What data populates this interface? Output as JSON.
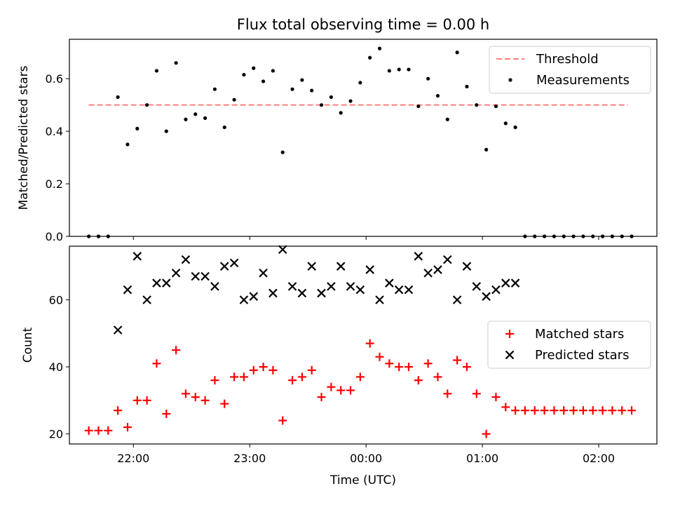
{
  "chart_data": [
    {
      "type": "scatter",
      "title": "Flux total observing time = 0.00 h",
      "ylabel": "Matched/Predicted stars",
      "ylim": [
        0,
        0.75
      ],
      "yticks": [
        0.0,
        0.2,
        0.4,
        0.6
      ],
      "ytick_labels": [
        "0.0",
        "0.2",
        "0.4",
        "0.6"
      ],
      "legend_position": "top-right",
      "threshold": {
        "name": "Threshold",
        "value": 0.5,
        "x_range": [
          "21:37",
          "02:15"
        ],
        "color": "#ff7f7f"
      },
      "series": [
        {
          "name": "Measurements",
          "color": "#000000",
          "x": [
            "21:37",
            "21:42",
            "21:47",
            "21:52",
            "21:57",
            "22:02",
            "22:07",
            "22:12",
            "22:17",
            "22:22",
            "22:27",
            "22:32",
            "22:37",
            "22:42",
            "22:47",
            "22:52",
            "22:57",
            "23:02",
            "23:07",
            "23:12",
            "23:17",
            "23:22",
            "23:27",
            "23:32",
            "23:37",
            "23:42",
            "23:47",
            "23:52",
            "23:57",
            "00:02",
            "00:07",
            "00:12",
            "00:17",
            "00:22",
            "00:27",
            "00:32",
            "00:37",
            "00:42",
            "00:47",
            "00:52",
            "00:57",
            "01:02",
            "01:07",
            "01:12",
            "01:17",
            "01:22",
            "01:27",
            "01:32",
            "01:37",
            "01:42",
            "01:47",
            "01:52",
            "01:57",
            "02:02",
            "02:07",
            "02:12",
            "02:17"
          ],
          "y": [
            0,
            0,
            0,
            0.53,
            0.35,
            0.41,
            0.5,
            0.63,
            0.4,
            0.66,
            0.445,
            0.465,
            0.45,
            0.56,
            0.415,
            0.52,
            0.615,
            0.64,
            0.59,
            0.63,
            0.32,
            0.56,
            0.595,
            0.555,
            0.5,
            0.53,
            0.47,
            0.515,
            0.585,
            0.68,
            0.715,
            0.63,
            0.635,
            0.635,
            0.495,
            0.6,
            0.535,
            0.445,
            0.7,
            0.57,
            0.5,
            0.33,
            0.495,
            0.43,
            0.415,
            0,
            0,
            0,
            0,
            0,
            0,
            0,
            0,
            0,
            0,
            0,
            0
          ]
        }
      ]
    },
    {
      "type": "scatter",
      "xlabel": "Time (UTC)",
      "ylabel": "Count",
      "ylim": [
        17,
        76
      ],
      "yticks": [
        20,
        40,
        60
      ],
      "ytick_labels": [
        "20",
        "40",
        "60"
      ],
      "xticks": [
        "22:00",
        "23:00",
        "00:00",
        "01:00",
        "02:00"
      ],
      "legend_position": "center-right",
      "series": [
        {
          "name": "Matched stars",
          "marker": "plus",
          "color": "#ff0000",
          "x": [
            "21:37",
            "21:42",
            "21:47",
            "21:52",
            "21:57",
            "22:02",
            "22:07",
            "22:12",
            "22:17",
            "22:22",
            "22:27",
            "22:32",
            "22:37",
            "22:42",
            "22:47",
            "22:52",
            "22:57",
            "23:02",
            "23:07",
            "23:12",
            "23:17",
            "23:22",
            "23:27",
            "23:32",
            "23:37",
            "23:42",
            "23:47",
            "23:52",
            "23:57",
            "00:02",
            "00:07",
            "00:12",
            "00:17",
            "00:22",
            "00:27",
            "00:32",
            "00:37",
            "00:42",
            "00:47",
            "00:52",
            "00:57",
            "01:02",
            "01:07",
            "01:12",
            "01:17",
            "01:22",
            "01:27",
            "01:32",
            "01:37",
            "01:42",
            "01:47",
            "01:52",
            "01:57",
            "02:02",
            "02:07",
            "02:12",
            "02:17"
          ],
          "y": [
            21,
            21,
            21,
            27,
            22,
            30,
            30,
            41,
            26,
            45,
            32,
            31,
            30,
            36,
            29,
            37,
            37,
            39,
            40,
            39,
            24,
            36,
            37,
            39,
            31,
            34,
            33,
            33,
            37,
            47,
            43,
            41,
            40,
            40,
            36,
            41,
            37,
            32,
            42,
            40,
            32,
            20,
            31,
            28,
            27,
            27,
            27,
            27,
            27,
            27,
            27,
            27,
            27,
            27,
            27,
            27,
            27
          ]
        },
        {
          "name": "Predicted stars",
          "marker": "x",
          "color": "#000000",
          "x": [
            "21:52",
            "21:57",
            "22:02",
            "22:07",
            "22:12",
            "22:17",
            "22:22",
            "22:27",
            "22:32",
            "22:37",
            "22:42",
            "22:47",
            "22:52",
            "22:57",
            "23:02",
            "23:07",
            "23:12",
            "23:17",
            "23:22",
            "23:27",
            "23:32",
            "23:37",
            "23:42",
            "23:47",
            "23:52",
            "23:57",
            "00:02",
            "00:07",
            "00:12",
            "00:17",
            "00:22",
            "00:27",
            "00:32",
            "00:37",
            "00:42",
            "00:47",
            "00:52",
            "00:57",
            "01:02",
            "01:07",
            "01:12",
            "01:17"
          ],
          "y": [
            51,
            63,
            73,
            60,
            65,
            65,
            68,
            72,
            67,
            67,
            64,
            70,
            71,
            60,
            61,
            68,
            62,
            75,
            64,
            62,
            70,
            62,
            64,
            70,
            64,
            63,
            69,
            60,
            65,
            63,
            63,
            73,
            68,
            69,
            72,
            60,
            70,
            64,
            61,
            63,
            65,
            65
          ]
        }
      ]
    }
  ]
}
